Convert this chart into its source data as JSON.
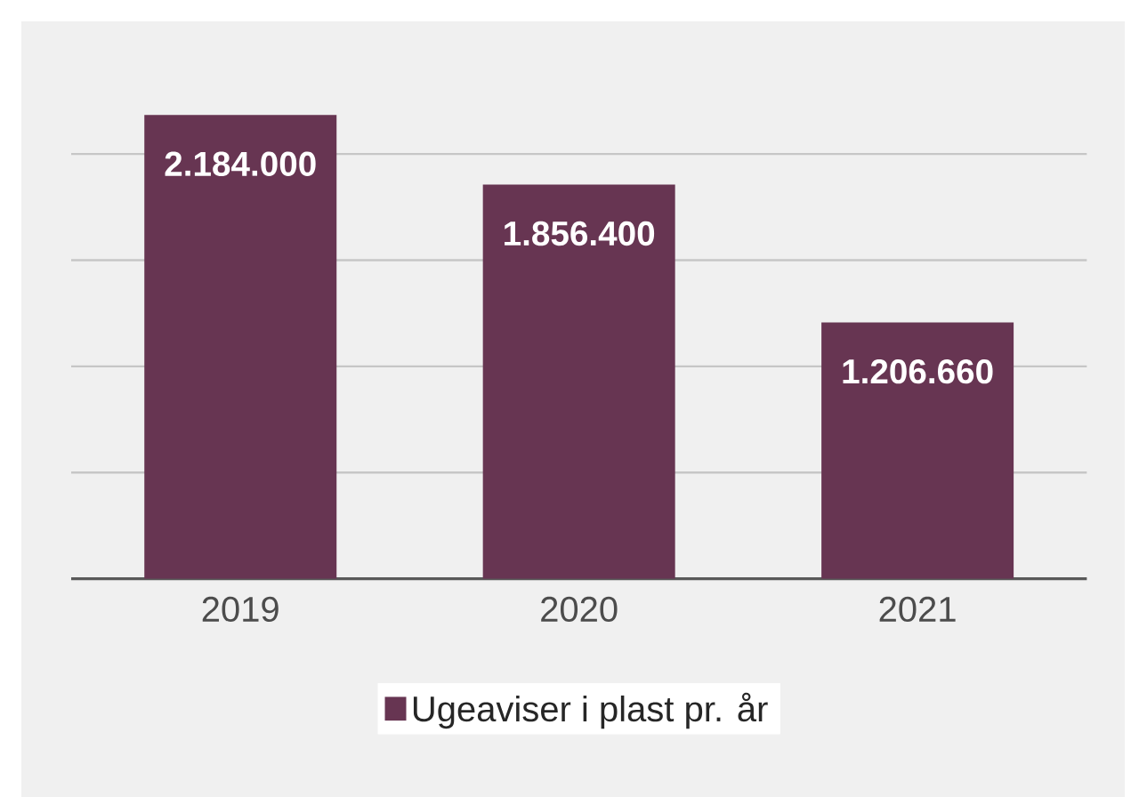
{
  "chart_data": {
    "type": "bar",
    "categories": [
      "2019",
      "2020",
      "2021"
    ],
    "series": [
      {
        "name": "Ugeaviser i plast pr. år",
        "color": "#673552",
        "values": [
          2184000,
          1856400,
          1206660
        ],
        "value_labels": [
          "2.184.000",
          "1.856.400",
          "1.206.660"
        ]
      }
    ],
    "grid": "y",
    "legend": "bottom",
    "tick_labels": "x"
  }
}
